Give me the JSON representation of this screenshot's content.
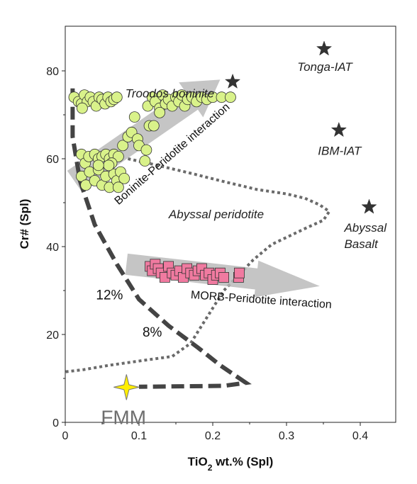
{
  "chart_data": {
    "type": "scatter",
    "xlabel": {
      "prefix": "TiO",
      "sub": "2",
      "suffix": " wt.% (Spl)"
    },
    "ylabel": "Cr# (Spl)",
    "xlim": [
      0,
      0.45
    ],
    "ylim": [
      0,
      90
    ],
    "xticks": [
      "0",
      "0.1",
      "0.2",
      "0.3",
      "0.4"
    ],
    "yticks": [
      "0",
      "20",
      "40",
      "60",
      "80"
    ],
    "series": [
      {
        "marker": "circle",
        "color": "#d9f28a",
        "points": [
          [
            0.012,
            74
          ],
          [
            0.018,
            73
          ],
          [
            0.022,
            72.5
          ],
          [
            0.026,
            74.5
          ],
          [
            0.03,
            73
          ],
          [
            0.034,
            74
          ],
          [
            0.038,
            73
          ],
          [
            0.042,
            72
          ],
          [
            0.046,
            74
          ],
          [
            0.05,
            73.5
          ],
          [
            0.054,
            72.5
          ],
          [
            0.058,
            74
          ],
          [
            0.062,
            73
          ],
          [
            0.066,
            73.5
          ],
          [
            0.07,
            74
          ],
          [
            0.023,
            71.5
          ],
          [
            0.112,
            72
          ],
          [
            0.118,
            74
          ],
          [
            0.122,
            73
          ],
          [
            0.128,
            71.5
          ],
          [
            0.132,
            74.5
          ],
          [
            0.136,
            72.5
          ],
          [
            0.14,
            73.5
          ],
          [
            0.145,
            72
          ],
          [
            0.15,
            74
          ],
          [
            0.154,
            73
          ],
          [
            0.158,
            74.5
          ],
          [
            0.162,
            72
          ],
          [
            0.166,
            73.5
          ],
          [
            0.172,
            74
          ],
          [
            0.178,
            73
          ],
          [
            0.185,
            74
          ],
          [
            0.192,
            73.5
          ],
          [
            0.2,
            74
          ],
          [
            0.212,
            74
          ],
          [
            0.224,
            74
          ],
          [
            0.128,
            70.5
          ],
          [
            0.022,
            61
          ],
          [
            0.027,
            59
          ],
          [
            0.032,
            60.5
          ],
          [
            0.04,
            61
          ],
          [
            0.045,
            60
          ],
          [
            0.05,
            60.5
          ],
          [
            0.055,
            61
          ],
          [
            0.06,
            60
          ],
          [
            0.066,
            61
          ],
          [
            0.072,
            60.5
          ],
          [
            0.063,
            59
          ],
          [
            0.022,
            56
          ],
          [
            0.028,
            54
          ],
          [
            0.033,
            57
          ],
          [
            0.04,
            55
          ],
          [
            0.045,
            57.5
          ],
          [
            0.05,
            54
          ],
          [
            0.055,
            56
          ],
          [
            0.06,
            53.5
          ],
          [
            0.066,
            56.5
          ],
          [
            0.07,
            55
          ],
          [
            0.075,
            57
          ],
          [
            0.08,
            55.5
          ],
          [
            0.072,
            53.5
          ],
          [
            0.059,
            58.5
          ],
          [
            0.045,
            58.5
          ],
          [
            0.078,
            63
          ],
          [
            0.085,
            65
          ],
          [
            0.09,
            66
          ],
          [
            0.094,
            69.5
          ],
          [
            0.098,
            64.5
          ],
          [
            0.1,
            63
          ],
          [
            0.108,
            59.5
          ],
          [
            0.11,
            62
          ],
          [
            0.114,
            67.5
          ],
          [
            0.12,
            67.5
          ]
        ]
      },
      {
        "marker": "square",
        "color": "#f07aa0",
        "points": [
          [
            0.115,
            35.5
          ],
          [
            0.118,
            34.5
          ],
          [
            0.122,
            36
          ],
          [
            0.126,
            35
          ],
          [
            0.13,
            34
          ],
          [
            0.135,
            33
          ],
          [
            0.14,
            35.5
          ],
          [
            0.145,
            34
          ],
          [
            0.15,
            33.5
          ],
          [
            0.155,
            34.5
          ],
          [
            0.16,
            33
          ],
          [
            0.165,
            35
          ],
          [
            0.17,
            34
          ],
          [
            0.175,
            33.5
          ],
          [
            0.18,
            34.5
          ],
          [
            0.185,
            35
          ],
          [
            0.19,
            33.5
          ],
          [
            0.195,
            34
          ],
          [
            0.2,
            32.5
          ],
          [
            0.205,
            33.5
          ],
          [
            0.21,
            34
          ],
          [
            0.215,
            33
          ],
          [
            0.235,
            33
          ],
          [
            0.236,
            34
          ]
        ]
      }
    ],
    "references": [
      {
        "x": 0.227,
        "y": 77.5,
        "label": "Troodos boninite"
      },
      {
        "x": 0.351,
        "y": 85,
        "label": "Tonga-IAT"
      },
      {
        "x": 0.371,
        "y": 66.5,
        "label": "IBM-IAT"
      },
      {
        "x": 0.412,
        "y": 49,
        "label": "Abyssal\nBasalt"
      },
      {
        "x": 0.083,
        "y": 8,
        "label": "FMM"
      }
    ],
    "melting_trend": {
      "points": [
        [
          0.01,
          76
        ],
        [
          0.01,
          65
        ],
        [
          0.02,
          55
        ],
        [
          0.04,
          45
        ],
        [
          0.07,
          36
        ],
        [
          0.1,
          28
        ],
        [
          0.14,
          22
        ],
        [
          0.18,
          17
        ],
        [
          0.21,
          13
        ],
        [
          0.245,
          9
        ],
        [
          0.215,
          8.3
        ],
        [
          0.1,
          8.1
        ]
      ],
      "labels": [
        {
          "text": "12%",
          "x": 0.06,
          "y": 28
        },
        {
          "text": "8%",
          "x": 0.118,
          "y": 19.5
        }
      ]
    },
    "field": {
      "label": "Abyssal peridotite",
      "boundary": [
        [
          0.085,
          60
        ],
        [
          0.125,
          58.5
        ],
        [
          0.175,
          56.5
        ],
        [
          0.21,
          55
        ],
        [
          0.26,
          53
        ],
        [
          0.3,
          52
        ],
        [
          0.325,
          51
        ],
        [
          0.345,
          49.5
        ],
        [
          0.358,
          48
        ],
        [
          0.35,
          46
        ],
        [
          0.33,
          44.5
        ],
        [
          0.305,
          42.5
        ],
        [
          0.28,
          40.5
        ],
        [
          0.255,
          37
        ],
        [
          0.235,
          33.5
        ],
        [
          0.215,
          30
        ],
        [
          0.2,
          26
        ],
        [
          0.185,
          22
        ],
        [
          0.17,
          18
        ],
        [
          0.145,
          15
        ],
        [
          0.11,
          14.2
        ],
        [
          0.06,
          13
        ],
        [
          0.025,
          12
        ],
        [
          0,
          11.5
        ]
      ]
    },
    "arrows": [
      {
        "label": "Boninite-Peridotite interaction",
        "from": [
          0.012,
          55
        ],
        "to": [
          0.21,
          78
        ]
      },
      {
        "label": "MORB-Peridotite interaction",
        "from": [
          0.083,
          36
        ],
        "to": [
          0.345,
          31
        ]
      }
    ]
  }
}
